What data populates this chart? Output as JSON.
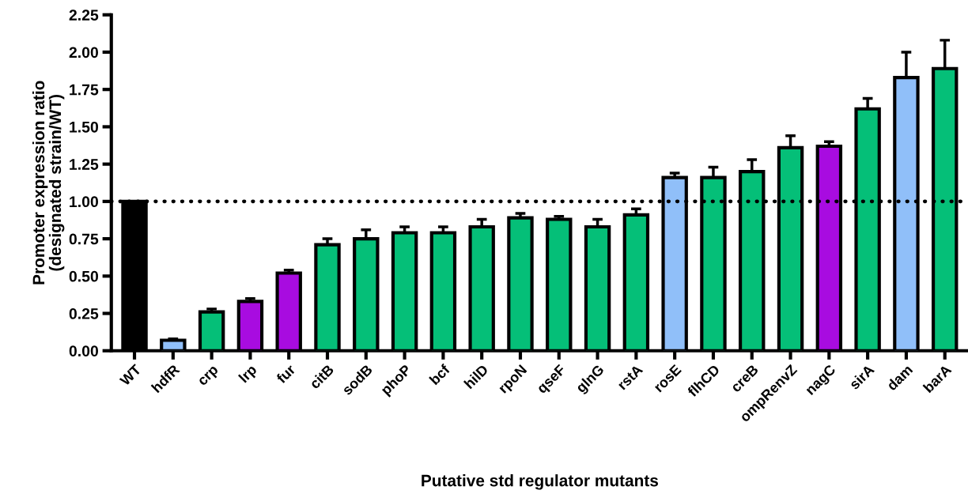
{
  "chart_data": {
    "type": "bar",
    "xlabel": "Putative std regulator mutants",
    "ylabel": "Promoter expression ratio\n(designated strain/WT)",
    "categories": [
      "WT",
      "hdfR",
      "crp",
      "lrp",
      "fur",
      "citB",
      "sodB",
      "phoP",
      "bcf",
      "hilD",
      "rpoN",
      "qseF",
      "glnG",
      "rstA",
      "rosE",
      "flhCD",
      "creB",
      "ompRenvZ",
      "nagC",
      "sirA",
      "dam",
      "barA"
    ],
    "values": [
      1.0,
      0.07,
      0.26,
      0.33,
      0.52,
      0.71,
      0.75,
      0.79,
      0.79,
      0.83,
      0.89,
      0.88,
      0.83,
      0.91,
      1.16,
      1.16,
      1.2,
      1.36,
      1.37,
      1.62,
      1.83,
      1.89
    ],
    "errors": [
      null,
      [
        0.07,
        0.08
      ],
      [
        0.26,
        0.28
      ],
      [
        0.33,
        0.35
      ],
      [
        0.52,
        0.54
      ],
      [
        0.71,
        0.75
      ],
      [
        0.75,
        0.81
      ],
      [
        0.79,
        0.83
      ],
      [
        0.79,
        0.83
      ],
      [
        0.83,
        0.88
      ],
      [
        0.89,
        0.92
      ],
      [
        0.88,
        0.9
      ],
      [
        0.83,
        0.88
      ],
      [
        0.91,
        0.95
      ],
      [
        1.16,
        1.19
      ],
      [
        1.16,
        1.23
      ],
      [
        1.2,
        1.28
      ],
      [
        1.36,
        1.44
      ],
      [
        1.37,
        1.4
      ],
      [
        1.62,
        1.69
      ],
      [
        1.83,
        2.0
      ],
      [
        1.89,
        2.08
      ]
    ],
    "colors": [
      "#000000",
      "#90bff9",
      "#05bf78",
      "#a80ce0",
      "#a80ce0",
      "#05bf78",
      "#05bf78",
      "#05bf78",
      "#05bf78",
      "#05bf78",
      "#05bf78",
      "#05bf78",
      "#05bf78",
      "#05bf78",
      "#90bff9",
      "#05bf78",
      "#05bf78",
      "#05bf78",
      "#a80ce0",
      "#05bf78",
      "#90bff9",
      "#05bf78"
    ],
    "ylim": [
      0,
      2.25
    ],
    "yticks": [
      {
        "value": 0,
        "label": "0.00"
      },
      {
        "value": 0.25,
        "label": "0.25"
      },
      {
        "value": 0.5,
        "label": "0.50"
      },
      {
        "value": 0.75,
        "label": "0.75"
      },
      {
        "value": 1,
        "label": "1.00"
      },
      {
        "value": 1.25,
        "label": "1.25"
      },
      {
        "value": 1.5,
        "label": "1.50"
      },
      {
        "value": 1.75,
        "label": "1.75"
      },
      {
        "value": 2,
        "label": "2.00"
      },
      {
        "value": 2.25,
        "label": "2.25"
      }
    ],
    "ref_lines": [
      {
        "axis": "y",
        "value": 1,
        "line_style": "dotted",
        "color": "#000000"
      }
    ],
    "grid": false
  }
}
